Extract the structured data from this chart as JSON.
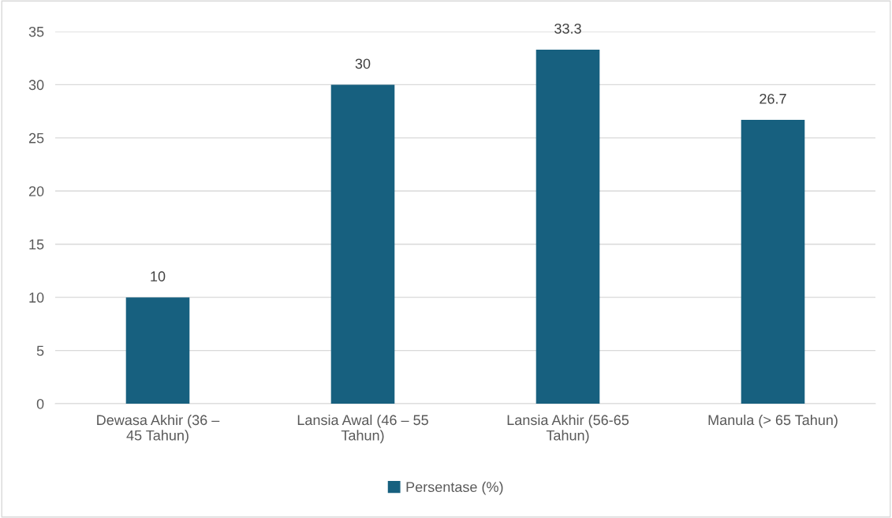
{
  "chart_data": {
    "type": "bar",
    "categories": [
      "Dewasa Akhir (36 – 45 Tahun)",
      "Lansia Awal (46 – 55 Tahun)",
      "Lansia Akhir (56-65 Tahun)",
      "Manula (> 65 Tahun)"
    ],
    "series": [
      {
        "name": "Persentase (%)",
        "color": "#17607f",
        "values": [
          10,
          30,
          33.3,
          26.7
        ]
      }
    ],
    "ylim": [
      0,
      35
    ],
    "yticks": [
      0,
      5,
      10,
      15,
      20,
      25,
      30,
      35
    ],
    "grid": "y",
    "legend": "bottom",
    "data_labels": true
  }
}
